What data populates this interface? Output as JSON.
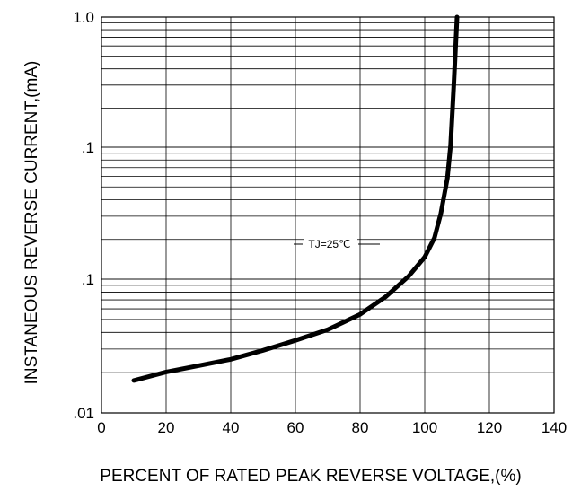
{
  "chart_data": {
    "type": "line",
    "xlabel": "PERCENT OF RATED PEAK REVERSE VOLTAGE,(%)",
    "ylabel": "INSTANEOUS REVERSE CURRENT,(mA)",
    "xlim": [
      0,
      140
    ],
    "ylim": [
      0.01,
      1.0
    ],
    "y_scale": "log",
    "grid": true,
    "x_ticks": [
      0,
      20,
      40,
      60,
      80,
      100,
      120,
      140
    ],
    "x_tick_labels": [
      "0",
      "20",
      "40",
      "60",
      "80",
      "100",
      "120",
      "140"
    ],
    "y_ticks": [
      0.01,
      0.1,
      1.0
    ],
    "y_tick_labels": [
      ".01",
      ".1",
      "1.0"
    ],
    "y_tick_label_extra": ".1",
    "annotation": "TJ=25℃",
    "series": [
      {
        "x": [
          10,
          20,
          30,
          40,
          50,
          60,
          70,
          80,
          88,
          95,
          100,
          103,
          105,
          107,
          108,
          109,
          110
        ],
        "y": [
          0.0145,
          0.016,
          0.0172,
          0.0185,
          0.0205,
          0.023,
          0.026,
          0.031,
          0.038,
          0.048,
          0.06,
          0.075,
          0.1,
          0.15,
          0.22,
          0.45,
          1.0
        ]
      }
    ]
  }
}
